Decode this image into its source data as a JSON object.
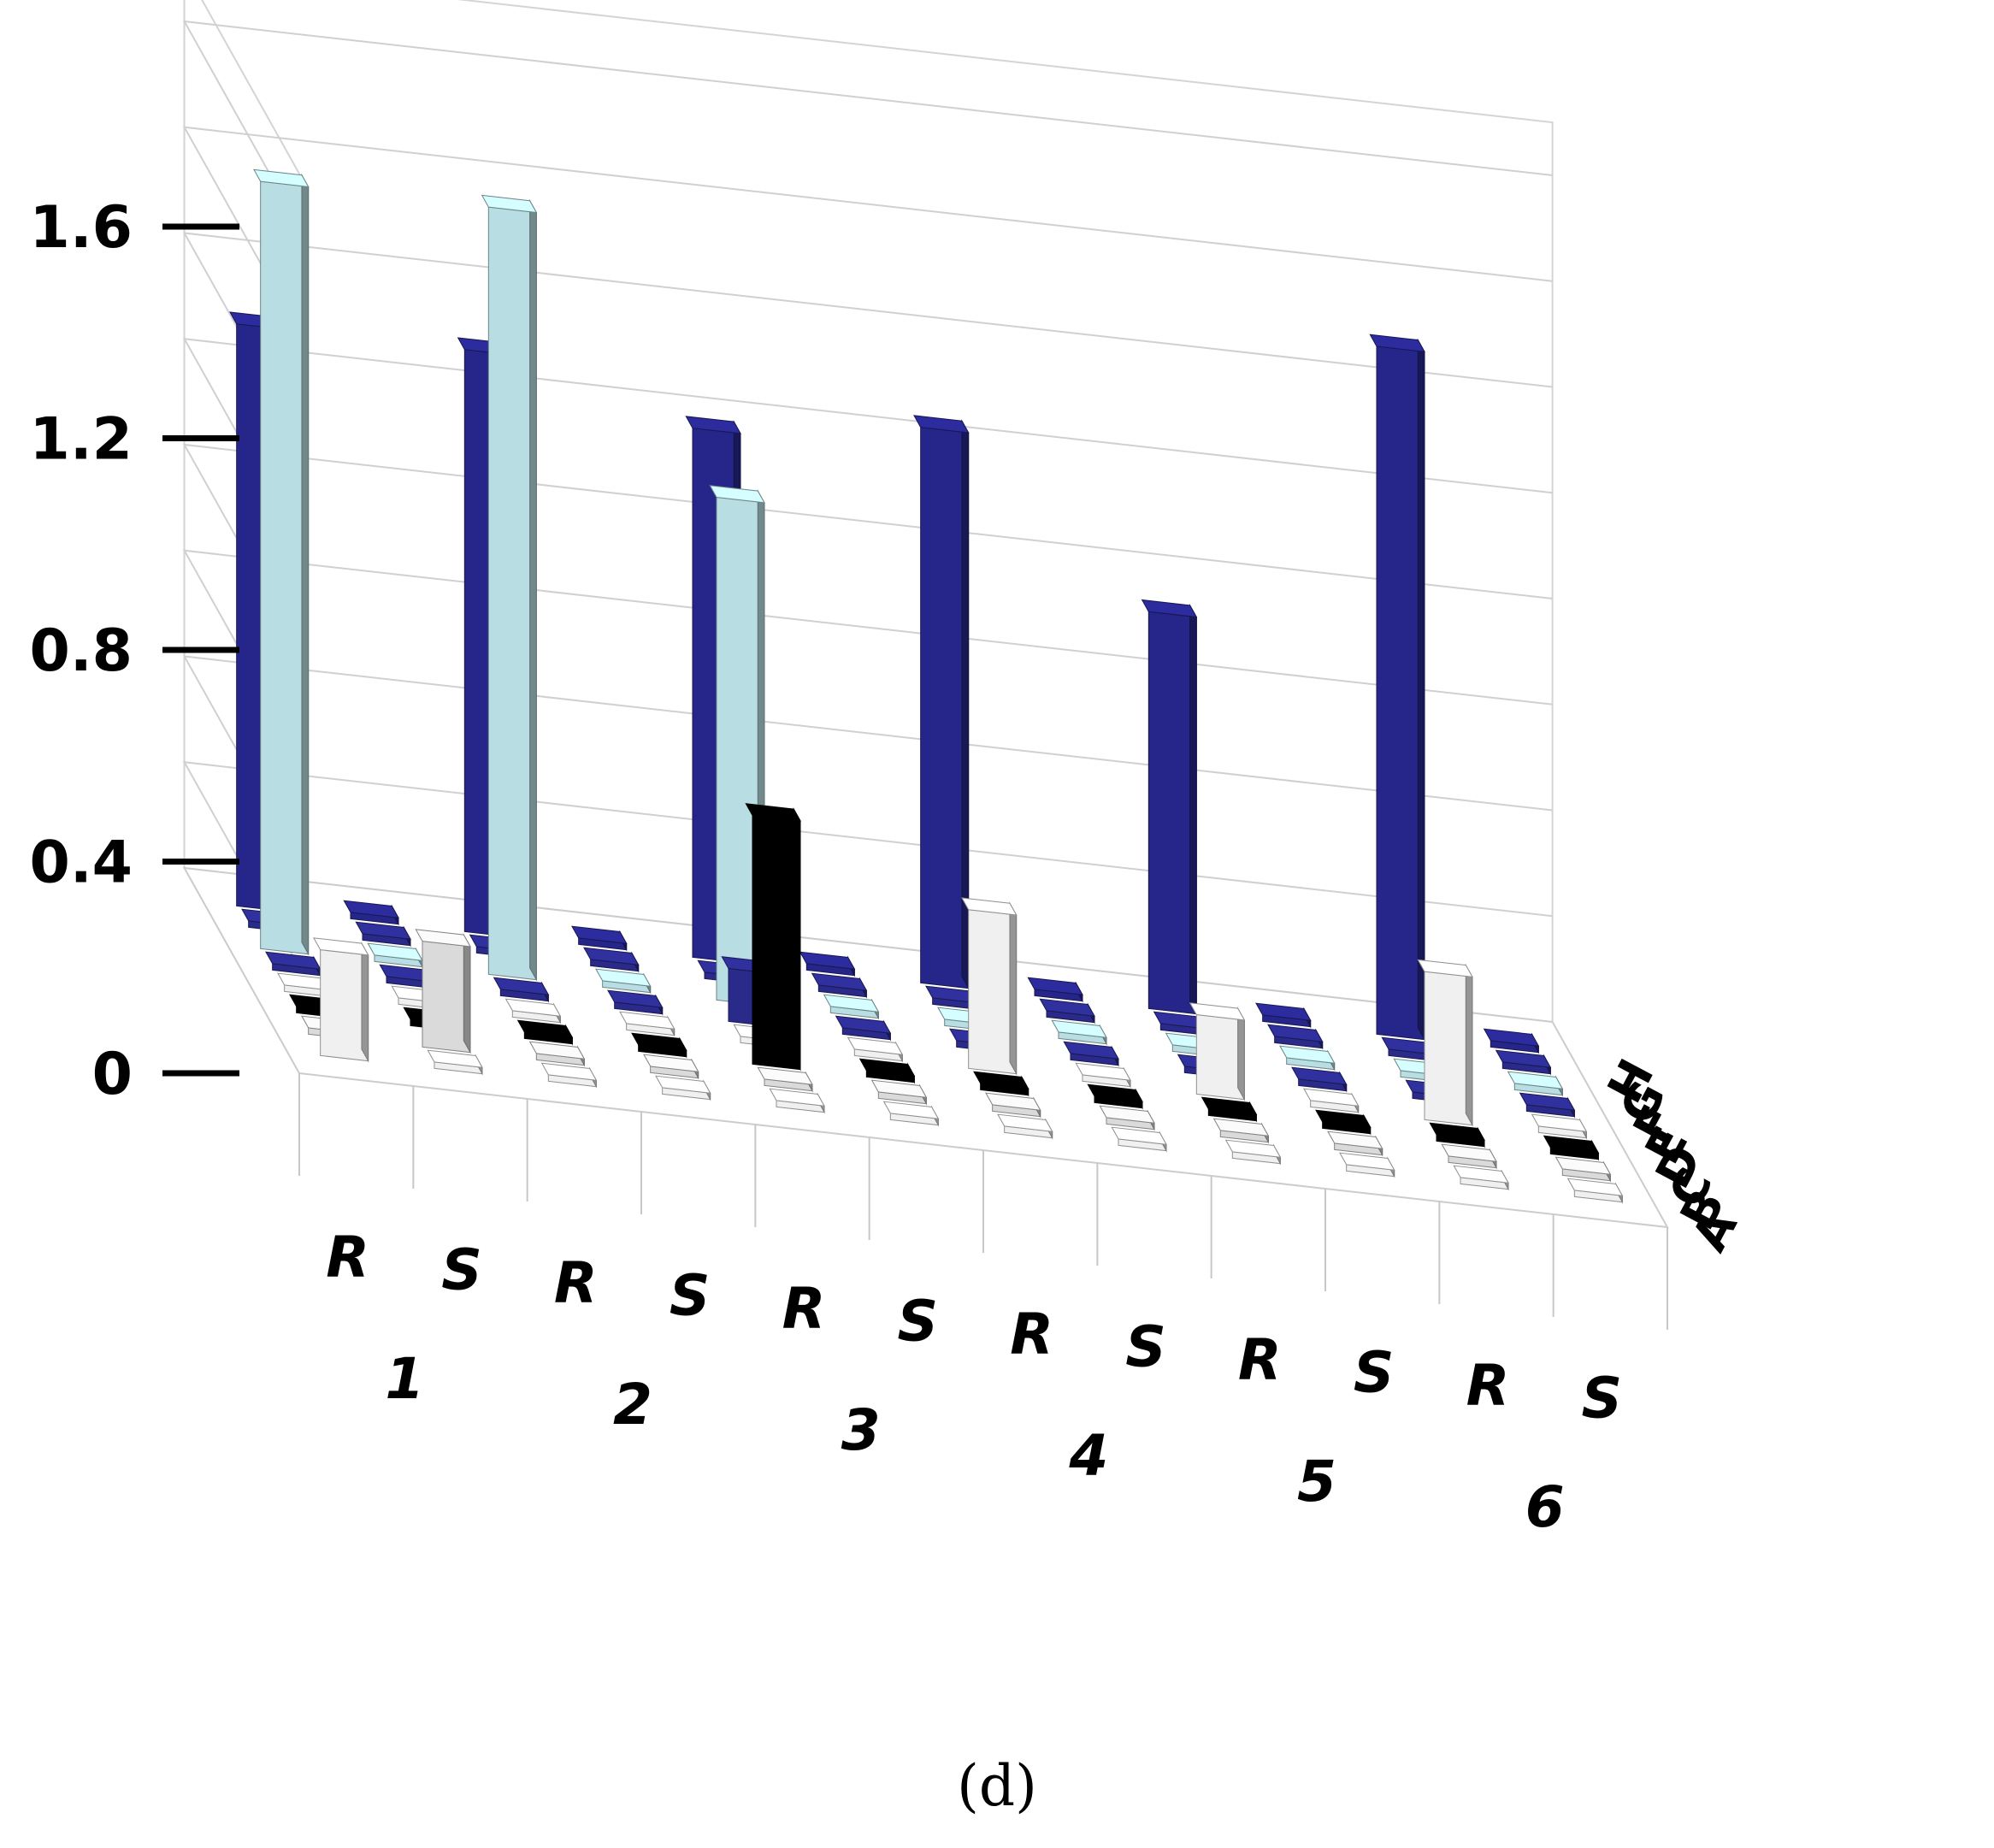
{
  "chart_data": {
    "type": "bar",
    "caption": "(d)",
    "groups": [
      "1",
      "2",
      "3",
      "4",
      "5",
      "6"
    ],
    "categories": [
      "R",
      "S",
      "R",
      "S",
      "R",
      "S",
      "R",
      "S",
      "R",
      "S",
      "R",
      "S"
    ],
    "series_labels": [
      "A",
      "B",
      "C",
      "D",
      "E",
      "F",
      "G",
      "H"
    ],
    "yticks": [
      "0",
      "0.4",
      "0.8",
      "1.2",
      "1.6"
    ],
    "ylim": [
      0,
      1.7
    ],
    "grid": true,
    "colors": {
      "A": "#f0f0f0",
      "B": "#dadada",
      "C": "#000000",
      "D": "#f0f0f0",
      "E": "#2a2a8a",
      "F": "#b8dde2",
      "G": "#2a2a8a",
      "H": "#26268a"
    },
    "series": [
      {
        "name": "A",
        "values": [
          0.2,
          0.0,
          0.0,
          0.0,
          0.0,
          0.0,
          0.0,
          0.0,
          0.0,
          0.0,
          0.0,
          0.0
        ]
      },
      {
        "name": "B",
        "values": [
          0.0,
          0.2,
          0.0,
          0.0,
          0.0,
          0.0,
          0.0,
          0.0,
          0.0,
          0.0,
          0.0,
          0.0
        ]
      },
      {
        "name": "C",
        "values": [
          0.0,
          0.0,
          0.0,
          0.0,
          0.47,
          0.0,
          0.0,
          0.0,
          0.0,
          0.0,
          0.0,
          0.0
        ]
      },
      {
        "name": "D",
        "values": [
          0.0,
          0.0,
          0.0,
          0.0,
          0.0,
          0.0,
          0.3,
          0.0,
          0.15,
          0.0,
          0.28,
          0.0
        ]
      },
      {
        "name": "E",
        "values": [
          0.0,
          0.0,
          0.0,
          0.0,
          0.1,
          0.0,
          0.0,
          0.0,
          0.0,
          0.0,
          0.0,
          0.0
        ]
      },
      {
        "name": "F",
        "values": [
          1.45,
          0.0,
          1.45,
          0.0,
          0.95,
          0.0,
          0.0,
          0.0,
          0.0,
          0.0,
          0.0,
          0.0
        ]
      },
      {
        "name": "G",
        "values": [
          0.0,
          0.0,
          0.0,
          0.0,
          0.0,
          0.0,
          0.0,
          0.0,
          0.0,
          0.0,
          0.0,
          0.0
        ]
      },
      {
        "name": "H",
        "values": [
          1.1,
          0.0,
          1.1,
          0.0,
          1.0,
          0.0,
          1.05,
          0.0,
          0.75,
          0.0,
          1.3,
          0.0
        ]
      }
    ]
  }
}
